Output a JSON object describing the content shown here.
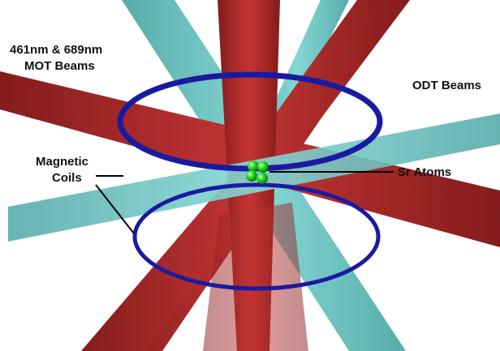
{
  "labels": {
    "mot_beams": [
      "461nm & 689nm",
      "MOT Beams"
    ],
    "odt_beams": "ODT Beams",
    "magnetic_coils": [
      "Magnetic",
      "Coils"
    ],
    "sr_atoms": "Sr Atoms"
  }
}
